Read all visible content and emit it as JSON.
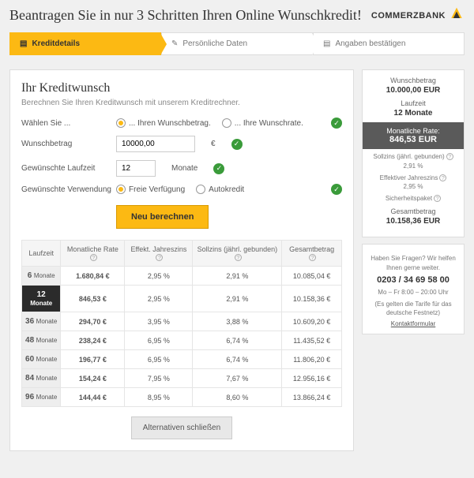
{
  "header": {
    "title": "Beantragen Sie in nur 3 Schritten Ihren Online Wunschkredit!",
    "logo_text": "COMMERZBANK"
  },
  "steps": [
    {
      "label": "Kreditdetails",
      "active": true
    },
    {
      "label": "Persönliche Daten",
      "active": false
    },
    {
      "label": "Angaben bestätigen",
      "active": false
    }
  ],
  "form": {
    "title": "Ihr Kreditwunsch",
    "subtitle": "Berechnen Sie Ihren Kreditwunsch mit unserem Kreditrechner.",
    "choose_label": "Wählen Sie ...",
    "opt_betrag": "... Ihren Wunschbetrag.",
    "opt_rate": "... Ihre Wunschrate.",
    "betrag_label": "Wunschbetrag",
    "betrag_value": "10000,00",
    "betrag_unit": "€",
    "laufzeit_label": "Gewünschte Laufzeit",
    "laufzeit_value": "12",
    "laufzeit_unit": "Monate",
    "verwendung_label": "Gewünschte Verwendung",
    "opt_frei": "Freie Verfügung",
    "opt_auto": "Autokredit",
    "calc_button": "Neu berechnen",
    "close_button": "Alternativen schließen"
  },
  "table": {
    "headers": {
      "laufzeit": "Laufzeit",
      "rate": "Monatliche Rate",
      "eff": "Effekt. Jahreszins",
      "soll": "Sollzins (jährl. gebunden)",
      "gesamt": "Gesamtbetrag"
    },
    "rows": [
      {
        "term_n": "6",
        "term_u": "Monate",
        "rate": "1.680,84 €",
        "eff": "2,95 %",
        "soll": "2,91 %",
        "total": "10.085,04 €",
        "selected": false
      },
      {
        "term_n": "12",
        "term_u": "Monate",
        "rate": "846,53 €",
        "eff": "2,95 %",
        "soll": "2,91 %",
        "total": "10.158,36 €",
        "selected": true
      },
      {
        "term_n": "36",
        "term_u": "Monate",
        "rate": "294,70 €",
        "eff": "3,95 %",
        "soll": "3,88 %",
        "total": "10.609,20 €",
        "selected": false
      },
      {
        "term_n": "48",
        "term_u": "Monate",
        "rate": "238,24 €",
        "eff": "6,95 %",
        "soll": "6,74 %",
        "total": "11.435,52 €",
        "selected": false
      },
      {
        "term_n": "60",
        "term_u": "Monate",
        "rate": "196,77 €",
        "eff": "6,95 %",
        "soll": "6,74 %",
        "total": "11.806,20 €",
        "selected": false
      },
      {
        "term_n": "84",
        "term_u": "Monate",
        "rate": "154,24 €",
        "eff": "7,95 %",
        "soll": "7,67 %",
        "total": "12.956,16 €",
        "selected": false
      },
      {
        "term_n": "96",
        "term_u": "Monate",
        "rate": "144,44 €",
        "eff": "8,95 %",
        "soll": "8,60 %",
        "total": "13.866,24 €",
        "selected": false
      }
    ]
  },
  "summary": {
    "betrag_label": "Wunschbetrag",
    "betrag_value": "10.000,00 EUR",
    "laufzeit_label": "Laufzeit",
    "laufzeit_value": "12 Monate",
    "rate_label": "Monatliche Rate:",
    "rate_value": "846,53 EUR",
    "soll_label": "Sollzins (jährl. gebunden)",
    "soll_value": "2,91 %",
    "eff_label": "Effektiver Jahreszins",
    "eff_value": "2,95 %",
    "sicher_label": "Sicherheitspaket",
    "gesamt_label": "Gesamtbetrag",
    "gesamt_value": "10.158,36 EUR"
  },
  "contact": {
    "heading": "Haben Sie Fragen? Wir helfen Ihnen gerne weiter.",
    "phone": "0203 / 34 69 58 00",
    "hours": "Mo – Fr 8:00 – 20:00 Uhr",
    "note": "(Es gelten die Tarife für das deutsche Festnetz)",
    "link": "Kontaktformular"
  }
}
